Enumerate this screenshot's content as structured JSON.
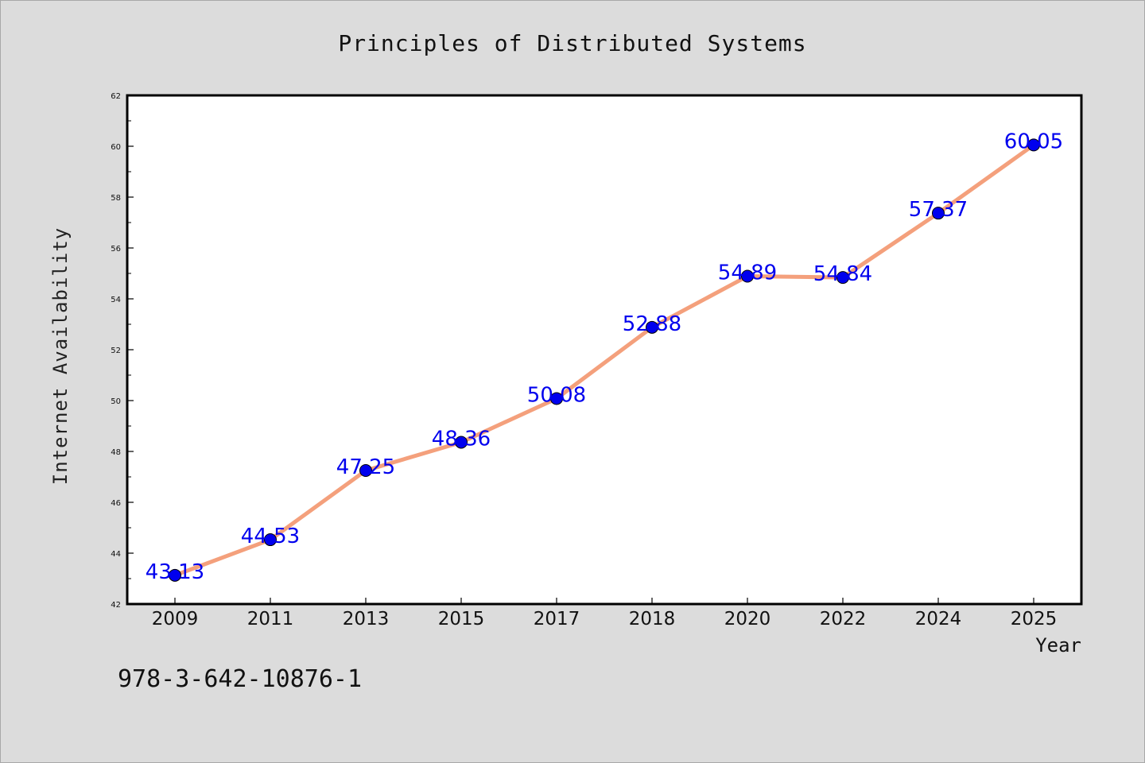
{
  "chart_data": {
    "type": "line",
    "title": "Principles of Distributed Systems",
    "xlabel": "Year",
    "ylabel": "Internet Availability",
    "categories": [
      "2009",
      "2011",
      "2013",
      "2015",
      "2017",
      "2018",
      "2020",
      "2022",
      "2024",
      "2025"
    ],
    "series": [
      {
        "values": [
          43.13,
          44.53,
          47.25,
          48.36,
          50.08,
          52.88,
          54.89,
          54.84,
          57.37,
          60.05
        ],
        "line_color": "#f4a07c",
        "marker_color": "#0000ee"
      }
    ],
    "data_labels": [
      "43.13",
      "44.53",
      "47.25",
      "48.36",
      "50.08",
      "52.88",
      "54.89",
      "54.84",
      "57.37",
      "60.05"
    ],
    "ylim": [
      42,
      62
    ],
    "yticks": [
      "42",
      "44",
      "46",
      "48",
      "50",
      "52",
      "54",
      "56",
      "58",
      "60",
      "62"
    ],
    "grid": false,
    "legend": "none"
  },
  "footer": {
    "isbn": "978-3-642-10876-1"
  },
  "colors": {
    "background": "#dcdcdc",
    "plot_background": "#ffffff",
    "line": "#f4a07c",
    "marker": "#0000ee",
    "data_label": "#0000ee"
  }
}
